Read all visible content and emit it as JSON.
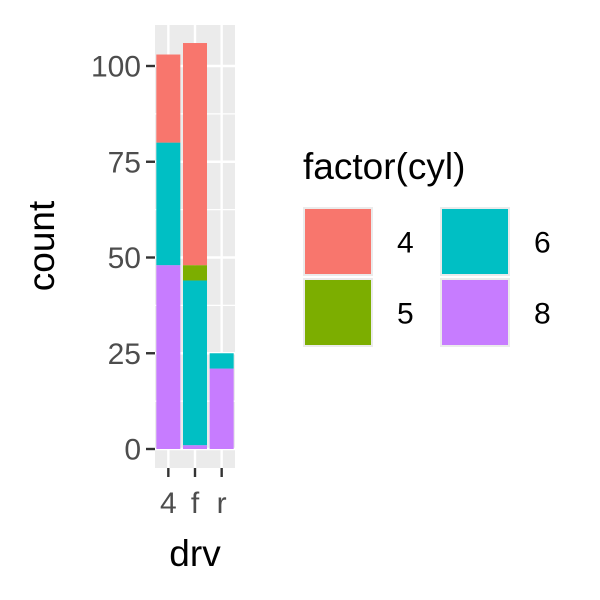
{
  "chart_data": {
    "type": "bar",
    "stacked": true,
    "categories": [
      "4",
      "f",
      "r"
    ],
    "series": [
      {
        "name": "4",
        "color": "#F8766D",
        "values": [
          23,
          58,
          0
        ]
      },
      {
        "name": "5",
        "color": "#7CAE00",
        "values": [
          0,
          4,
          0
        ]
      },
      {
        "name": "6",
        "color": "#00BFC4",
        "values": [
          32,
          43,
          4
        ]
      },
      {
        "name": "8",
        "color": "#C77CFF",
        "values": [
          48,
          1,
          21
        ]
      }
    ],
    "xlabel": "drv",
    "ylabel": "count",
    "yticks": [
      0,
      25,
      50,
      75,
      100
    ],
    "ylim": [
      0,
      106
    ],
    "grid": true,
    "legend": {
      "title": "factor(cyl)",
      "position": "right",
      "columns": 2
    }
  }
}
